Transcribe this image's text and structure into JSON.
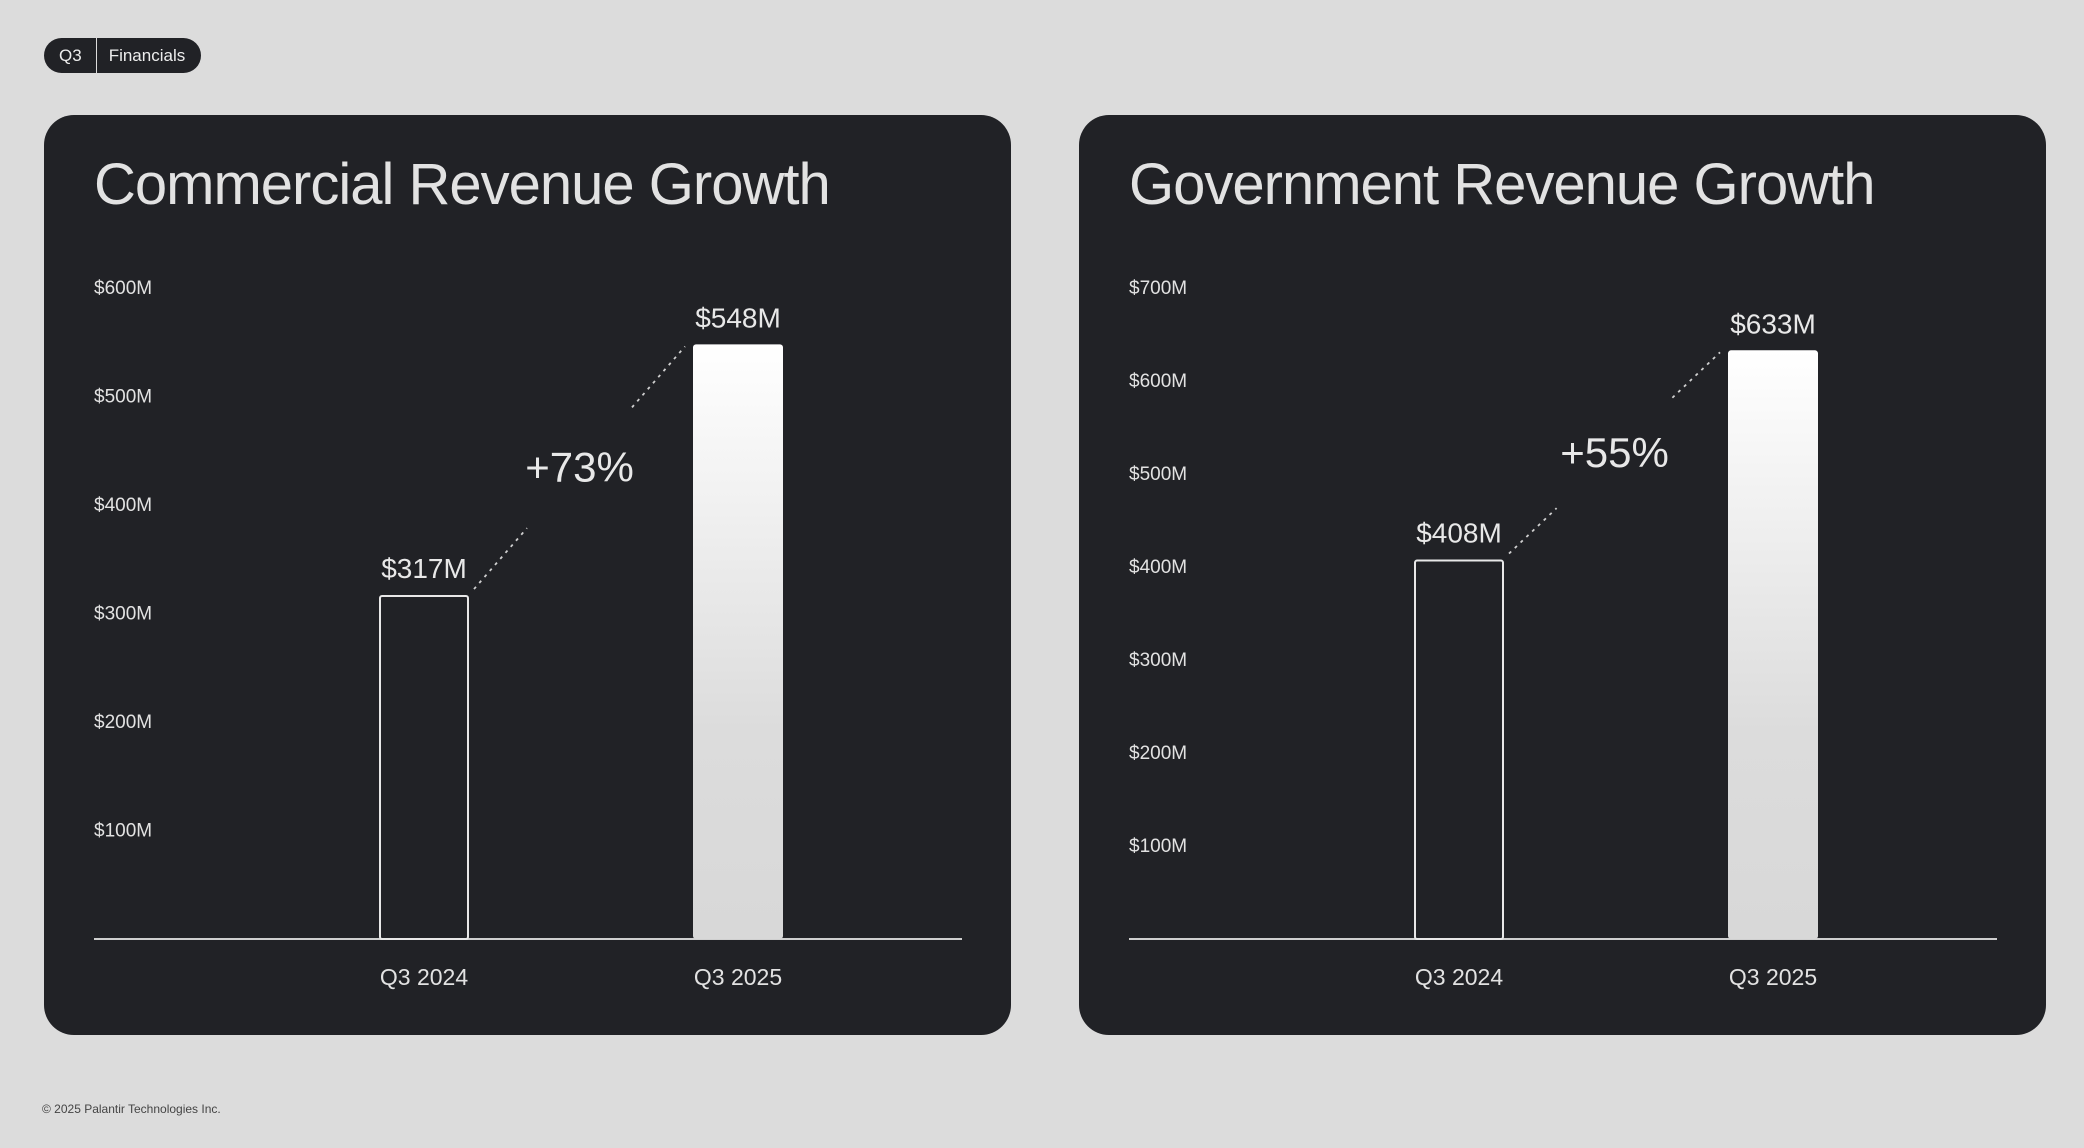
{
  "header": {
    "quarter": "Q3",
    "section": "Financials"
  },
  "footer": {
    "copyright": "© 2025 Palantir Technologies Inc."
  },
  "colors": {
    "background": "#dcdcdc",
    "panel": "#212226",
    "text": "#e2e2e2"
  },
  "chart_data": [
    {
      "type": "bar",
      "title": "Commercial Revenue Growth",
      "categories": [
        "Q3 2024",
        "Q3 2025"
      ],
      "values": [
        317,
        548
      ],
      "value_labels": [
        "$317M",
        "$548M"
      ],
      "yticks": [
        100,
        200,
        300,
        400,
        500,
        600
      ],
      "ytick_labels": [
        "$100M",
        "$200M",
        "$300M",
        "$400M",
        "$500M",
        "$600M"
      ],
      "ylim": [
        0,
        600
      ],
      "growth_label": "+73%",
      "styles": [
        "outline",
        "filled"
      ],
      "grid": false
    },
    {
      "type": "bar",
      "title": "Government Revenue Growth",
      "categories": [
        "Q3 2024",
        "Q3 2025"
      ],
      "values": [
        408,
        633
      ],
      "value_labels": [
        "$408M",
        "$633M"
      ],
      "yticks": [
        100,
        200,
        300,
        400,
        500,
        600,
        700
      ],
      "ytick_labels": [
        "$100M",
        "$200M",
        "$300M",
        "$400M",
        "$500M",
        "$600M",
        "$700M"
      ],
      "ylim": [
        0,
        700
      ],
      "growth_label": "+55%",
      "styles": [
        "outline",
        "filled"
      ],
      "grid": false
    }
  ]
}
